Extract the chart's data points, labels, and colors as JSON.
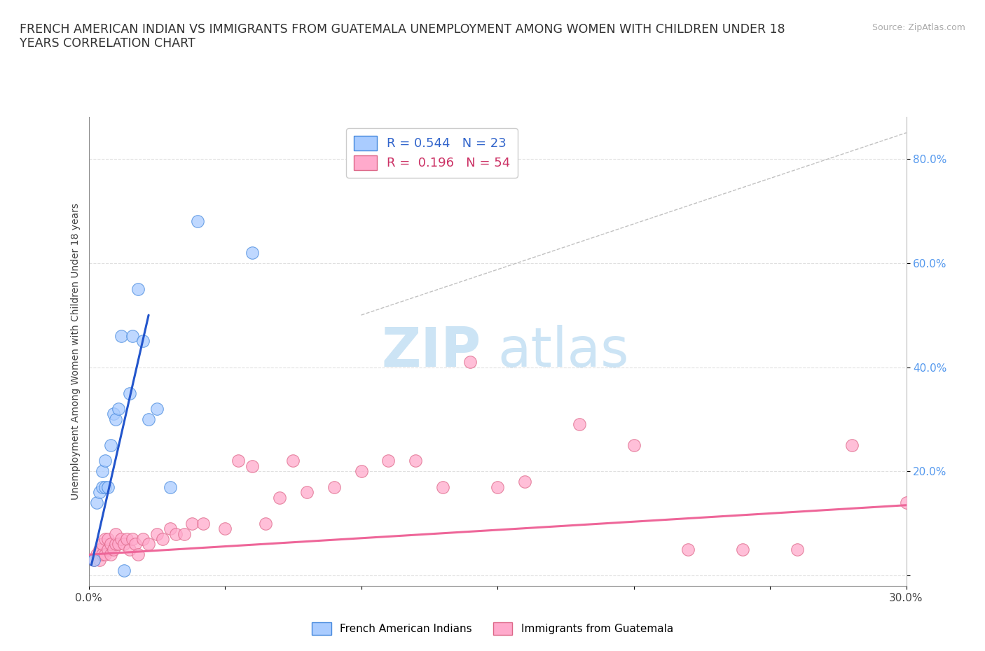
{
  "title": "FRENCH AMERICAN INDIAN VS IMMIGRANTS FROM GUATEMALA UNEMPLOYMENT AMONG WOMEN WITH CHILDREN UNDER 18\nYEARS CORRELATION CHART",
  "source": "Source: ZipAtlas.com",
  "ylabel": "Unemployment Among Women with Children Under 18 years",
  "xlim": [
    0.0,
    0.3
  ],
  "ylim": [
    -0.02,
    0.88
  ],
  "xticks": [
    0.0,
    0.05,
    0.1,
    0.15,
    0.2,
    0.25,
    0.3
  ],
  "xticklabels": [
    "0.0%",
    "",
    "",
    "",
    "",
    "",
    "30.0%"
  ],
  "ytick_positions": [
    0.0,
    0.2,
    0.4,
    0.6,
    0.8
  ],
  "ytick_labels": [
    "",
    "20.0%",
    "40.0%",
    "60.0%",
    "80.0%"
  ],
  "blue_R": "0.544",
  "blue_N": "23",
  "pink_R": "0.196",
  "pink_N": "54",
  "blue_scatter_x": [
    0.002,
    0.003,
    0.004,
    0.005,
    0.005,
    0.006,
    0.006,
    0.007,
    0.008,
    0.009,
    0.01,
    0.011,
    0.012,
    0.013,
    0.015,
    0.016,
    0.018,
    0.02,
    0.022,
    0.025,
    0.03,
    0.04,
    0.06
  ],
  "blue_scatter_y": [
    0.03,
    0.14,
    0.16,
    0.17,
    0.2,
    0.17,
    0.22,
    0.17,
    0.25,
    0.31,
    0.3,
    0.32,
    0.46,
    0.01,
    0.35,
    0.46,
    0.55,
    0.45,
    0.3,
    0.32,
    0.17,
    0.68,
    0.62
  ],
  "pink_scatter_x": [
    0.002,
    0.003,
    0.004,
    0.004,
    0.005,
    0.005,
    0.006,
    0.006,
    0.007,
    0.007,
    0.008,
    0.008,
    0.009,
    0.01,
    0.01,
    0.011,
    0.012,
    0.013,
    0.014,
    0.015,
    0.016,
    0.017,
    0.018,
    0.02,
    0.022,
    0.025,
    0.027,
    0.03,
    0.032,
    0.035,
    0.038,
    0.042,
    0.05,
    0.055,
    0.06,
    0.065,
    0.07,
    0.075,
    0.08,
    0.09,
    0.1,
    0.11,
    0.12,
    0.13,
    0.14,
    0.15,
    0.16,
    0.18,
    0.2,
    0.22,
    0.24,
    0.26,
    0.28,
    0.3
  ],
  "pink_scatter_y": [
    0.03,
    0.04,
    0.03,
    0.05,
    0.04,
    0.06,
    0.04,
    0.07,
    0.05,
    0.07,
    0.04,
    0.06,
    0.05,
    0.06,
    0.08,
    0.06,
    0.07,
    0.06,
    0.07,
    0.05,
    0.07,
    0.06,
    0.04,
    0.07,
    0.06,
    0.08,
    0.07,
    0.09,
    0.08,
    0.08,
    0.1,
    0.1,
    0.09,
    0.22,
    0.21,
    0.1,
    0.15,
    0.22,
    0.16,
    0.17,
    0.2,
    0.22,
    0.22,
    0.17,
    0.41,
    0.17,
    0.18,
    0.29,
    0.25,
    0.05,
    0.05,
    0.05,
    0.25,
    0.14
  ],
  "blue_line_x": [
    0.001,
    0.022
  ],
  "blue_line_y": [
    0.02,
    0.5
  ],
  "pink_line_x": [
    0.0,
    0.3
  ],
  "pink_line_y": [
    0.04,
    0.135
  ],
  "diag_line_x": [
    0.1,
    0.3
  ],
  "diag_line_y": [
    0.5,
    0.85
  ],
  "blue_color": "#aaccff",
  "pink_color": "#ffaacc",
  "blue_edge": "#4488dd",
  "pink_edge": "#dd6688",
  "blue_line_color": "#2255cc",
  "pink_line_color": "#ee6699",
  "watermark_zip": "ZIP",
  "watermark_atlas": "atlas",
  "watermark_color": "#cce4f5",
  "background_color": "#ffffff",
  "grid_color": "#e0e0e0"
}
